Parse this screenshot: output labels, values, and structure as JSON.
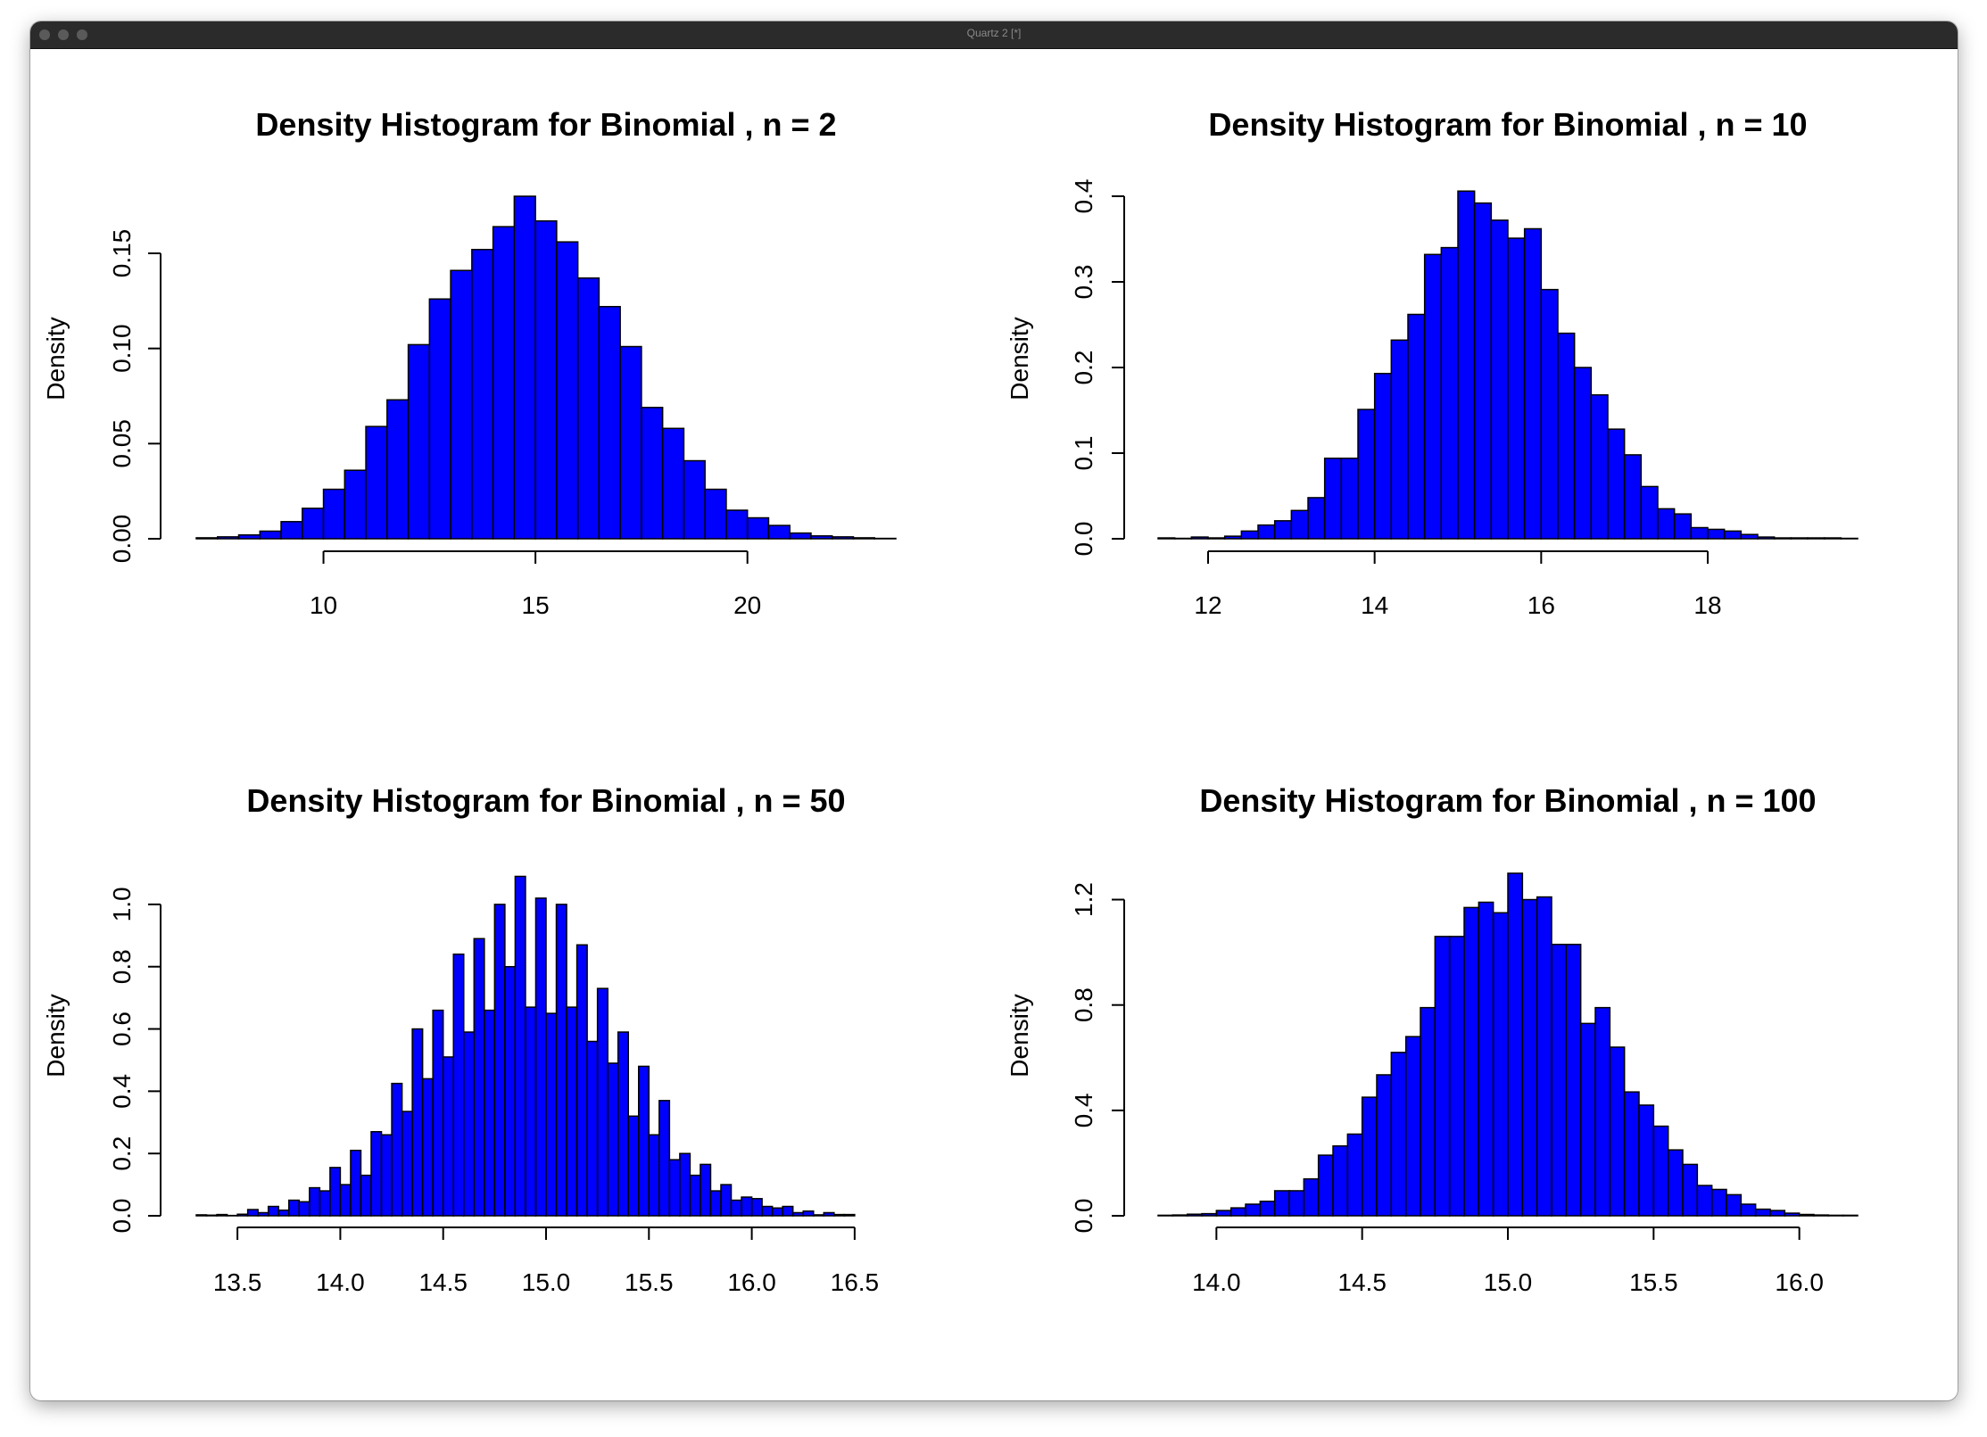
{
  "window": {
    "title": "Quartz 2 [*]"
  },
  "colors": {
    "bar_fill": "#0000ff",
    "bar_stroke": "#000000",
    "axis": "#000000",
    "background": "#ffffff"
  },
  "chart_data": [
    {
      "type": "bar",
      "title": "Density Histogram for Binomial , n = 2",
      "xlabel": "",
      "ylabel": "Density",
      "bin_start": 7.0,
      "bin_width": 0.5,
      "values": [
        0.0005,
        0.001,
        0.002,
        0.004,
        0.009,
        0.016,
        0.026,
        0.036,
        0.059,
        0.073,
        0.102,
        0.126,
        0.141,
        0.152,
        0.164,
        0.18,
        0.167,
        0.156,
        0.137,
        0.122,
        0.101,
        0.069,
        0.058,
        0.041,
        0.026,
        0.015,
        0.011,
        0.007,
        0.003,
        0.0015,
        0.001,
        0.0005,
        0.0002
      ],
      "xlim": [
        7.0,
        23.5
      ],
      "xticks": [
        10,
        15,
        20
      ],
      "xtick_labels": [
        "10",
        "15",
        "20"
      ],
      "ylim": [
        0,
        0.18
      ],
      "yticks": [
        0,
        0.05,
        0.1,
        0.15
      ],
      "ytick_labels": [
        "0.00",
        "0.05",
        "0.10",
        "0.15"
      ]
    },
    {
      "type": "bar",
      "title": "Density Histogram for Binomial , n = 10",
      "xlabel": "",
      "ylabel": "Density",
      "bin_start": 11.4,
      "bin_width": 0.2,
      "values": [
        0.001,
        0.0005,
        0.002,
        0.001,
        0.003,
        0.009,
        0.016,
        0.021,
        0.033,
        0.048,
        0.094,
        0.094,
        0.151,
        0.193,
        0.232,
        0.262,
        0.332,
        0.34,
        0.406,
        0.392,
        0.372,
        0.351,
        0.362,
        0.291,
        0.24,
        0.2,
        0.168,
        0.128,
        0.098,
        0.061,
        0.035,
        0.029,
        0.013,
        0.011,
        0.009,
        0.005,
        0.002,
        0.001,
        0.001,
        0.001,
        0.001,
        0.0005
      ],
      "xlim": [
        11.4,
        19.8
      ],
      "xticks": [
        12,
        14,
        16,
        18
      ],
      "xtick_labels": [
        "12",
        "14",
        "16",
        "18"
      ],
      "ylim": [
        0,
        0.4
      ],
      "yticks": [
        0,
        0.1,
        0.2,
        0.3,
        0.4
      ],
      "ytick_labels": [
        "0.0",
        "0.1",
        "0.2",
        "0.3",
        "0.4"
      ]
    },
    {
      "type": "bar",
      "title": "Density Histogram for Binomial , n = 50",
      "xlabel": "",
      "ylabel": "Density",
      "bin_start": 13.3,
      "bin_width": 0.05,
      "values": [
        0.003,
        0.002,
        0.004,
        0.001,
        0.005,
        0.02,
        0.01,
        0.03,
        0.018,
        0.05,
        0.045,
        0.09,
        0.08,
        0.155,
        0.1,
        0.21,
        0.13,
        0.27,
        0.26,
        0.425,
        0.335,
        0.6,
        0.44,
        0.66,
        0.51,
        0.84,
        0.59,
        0.89,
        0.66,
        1.0,
        0.8,
        1.09,
        0.67,
        1.02,
        0.65,
        1.0,
        0.67,
        0.87,
        0.56,
        0.73,
        0.49,
        0.59,
        0.32,
        0.48,
        0.26,
        0.37,
        0.18,
        0.2,
        0.13,
        0.165,
        0.08,
        0.1,
        0.05,
        0.06,
        0.055,
        0.03,
        0.025,
        0.03,
        0.01,
        0.015,
        0.003,
        0.01,
        0.004,
        0.004
      ],
      "xlim": [
        13.3,
        16.7
      ],
      "xticks": [
        13.5,
        14.0,
        14.5,
        15.0,
        15.5,
        16.0,
        16.5
      ],
      "xtick_labels": [
        "13.5",
        "14.0",
        "14.5",
        "15.0",
        "15.5",
        "16.0",
        "16.5"
      ],
      "ylim": [
        0,
        1.1
      ],
      "yticks": [
        0,
        0.2,
        0.4,
        0.6,
        0.8,
        1.0
      ],
      "ytick_labels": [
        "0.0",
        "0.2",
        "0.4",
        "0.6",
        "0.8",
        "1.0"
      ]
    },
    {
      "type": "bar",
      "title": "Density Histogram for Binomial , n = 100",
      "xlabel": "",
      "ylabel": "Density",
      "bin_start": 13.8,
      "bin_width": 0.05,
      "values": [
        0.002,
        0.003,
        0.006,
        0.008,
        0.02,
        0.03,
        0.044,
        0.055,
        0.095,
        0.095,
        0.14,
        0.23,
        0.265,
        0.31,
        0.45,
        0.535,
        0.62,
        0.68,
        0.79,
        1.06,
        1.06,
        1.17,
        1.19,
        1.15,
        1.3,
        1.2,
        1.21,
        1.03,
        1.03,
        0.73,
        0.79,
        0.64,
        0.47,
        0.42,
        0.34,
        0.25,
        0.195,
        0.115,
        0.1,
        0.08,
        0.044,
        0.025,
        0.02,
        0.01,
        0.005,
        0.003,
        0.002,
        0.002
      ],
      "xlim": [
        13.8,
        16.2
      ],
      "xticks": [
        14.0,
        14.5,
        15.0,
        15.5,
        16.0
      ],
      "xtick_labels": [
        "14.0",
        "14.5",
        "15.0",
        "15.5",
        "16.0"
      ],
      "ylim": [
        0,
        1.3
      ],
      "yticks": [
        0,
        0.4,
        0.8,
        1.2
      ],
      "ytick_labels": [
        "0.0",
        "0.4",
        "0.8",
        "1.2"
      ]
    }
  ]
}
